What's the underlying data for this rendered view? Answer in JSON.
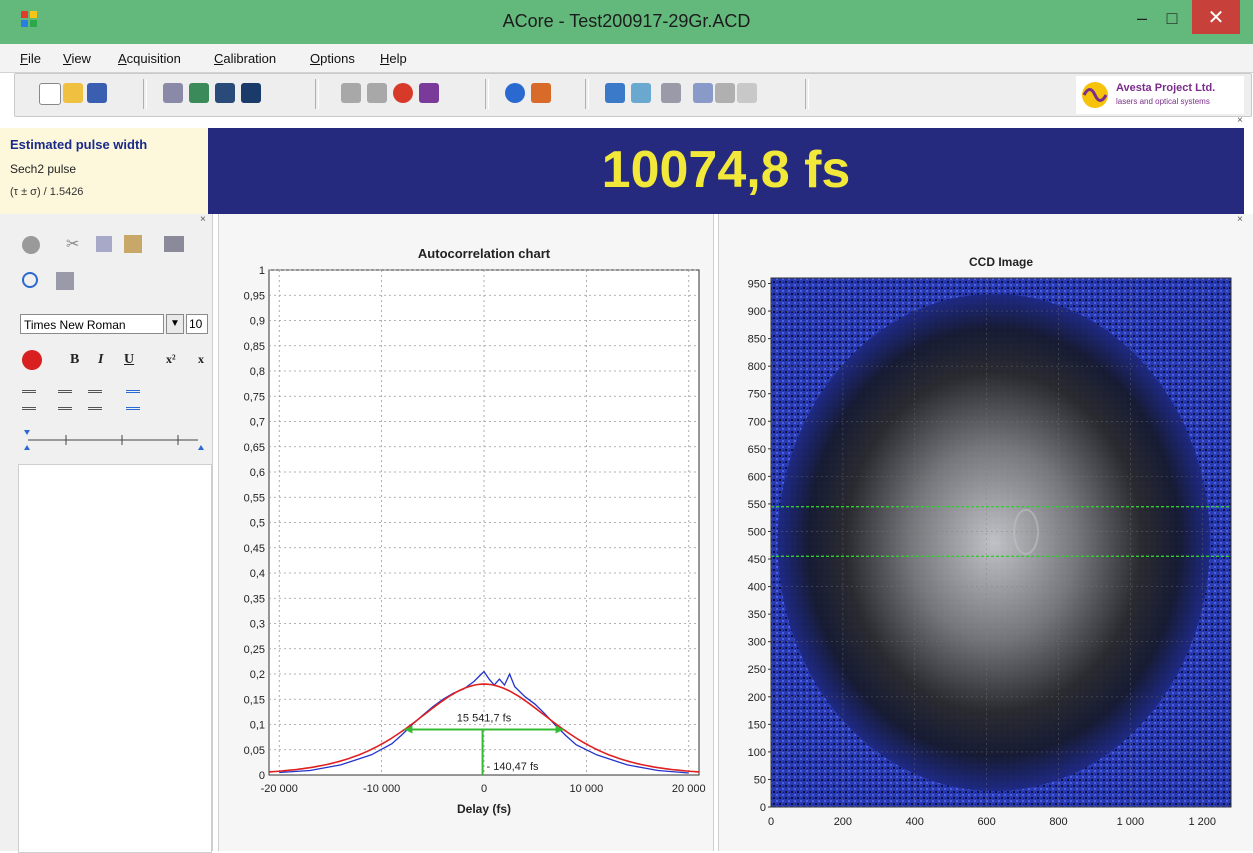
{
  "window": {
    "title": "ACore - Test200917-29Gr.ACD",
    "min_label": "–",
    "max_label": "□",
    "close_label": "✕"
  },
  "menu": [
    "File",
    "View",
    "Acquisition",
    "Calibration",
    "Options",
    "Help"
  ],
  "toolbar_icons": [
    "new-file-icon",
    "open-folder-icon",
    "save-icon",
    "edit-icon",
    "image-icon",
    "export-icon",
    "import-icon",
    "record-icon",
    "record2-icon",
    "stop-icon",
    "settings-icon",
    "help-icon",
    "puzzle-icon",
    "run-icon",
    "document-icon",
    "tools-icon",
    "arrows-icon",
    "copy-icon",
    "paste-icon"
  ],
  "logo": {
    "line1": "Avesta Project Ltd.",
    "line2": "lasers and optical systems"
  },
  "pulse": {
    "title": "Estimated pulse width",
    "type": "Sech2 pulse",
    "formula": "(τ ± σ) / 1.5426",
    "value": "10074,8 fs"
  },
  "editor": {
    "font_name": "Times New Roman",
    "font_size": "10",
    "bold_label": "B",
    "italic_label": "I",
    "underline_label": "U",
    "superscript_label": "x²",
    "subscript_label": "x"
  },
  "panel_close": "×",
  "colors": {
    "title_bar": "#63b97c",
    "result_bg": "#252a7e",
    "result_text": "#f2e83a",
    "data_blue": "#2233cc",
    "fit_red": "#e02020",
    "marker_green": "#33bb33"
  },
  "chart_data": [
    {
      "type": "line",
      "title": "Autocorrelation chart",
      "xlabel": "Delay (fs)",
      "ylabel": "",
      "xlim": [
        -21000,
        21000
      ],
      "ylim": [
        0,
        1
      ],
      "x_ticks": [
        -20000,
        -10000,
        0,
        10000,
        20000
      ],
      "x_tick_labels": [
        "-20 000",
        "-10 000",
        "0",
        "10 000",
        "20 000"
      ],
      "y_ticks": [
        0,
        0.05,
        0.1,
        0.15,
        0.2,
        0.25,
        0.3,
        0.35,
        0.4,
        0.45,
        0.5,
        0.55,
        0.6,
        0.65,
        0.7,
        0.75,
        0.8,
        0.85,
        0.9,
        0.95,
        1
      ],
      "y_tick_labels": [
        "0",
        "0,05",
        "0,1",
        "0,15",
        "0,2",
        "0,25",
        "0,3",
        "0,35",
        "0,4",
        "0,45",
        "0,5",
        "0,55",
        "0,6",
        "0,65",
        "0,7",
        "0,75",
        "0,8",
        "0,85",
        "0,9",
        "0,95",
        "1"
      ],
      "grid": true,
      "fit": {
        "peak": 0.18,
        "center": 0,
        "fwhm": 15541.7
      },
      "measured_points": [
        [
          -20000,
          0.005
        ],
        [
          -17000,
          0.009
        ],
        [
          -14000,
          0.02
        ],
        [
          -11000,
          0.04
        ],
        [
          -9000,
          0.062
        ],
        [
          -8000,
          0.08
        ],
        [
          -7000,
          0.1
        ],
        [
          -6000,
          0.118
        ],
        [
          -5000,
          0.135
        ],
        [
          -4000,
          0.15
        ],
        [
          -3000,
          0.162
        ],
        [
          -2000,
          0.17
        ],
        [
          -1000,
          0.185
        ],
        [
          -500,
          0.195
        ],
        [
          0,
          0.205
        ],
        [
          500,
          0.19
        ],
        [
          1000,
          0.178
        ],
        [
          1500,
          0.19
        ],
        [
          2000,
          0.178
        ],
        [
          2500,
          0.2
        ],
        [
          3000,
          0.175
        ],
        [
          4000,
          0.155
        ],
        [
          5000,
          0.14
        ],
        [
          6000,
          0.12
        ],
        [
          7000,
          0.098
        ],
        [
          8000,
          0.078
        ],
        [
          9000,
          0.06
        ],
        [
          11000,
          0.04
        ],
        [
          14000,
          0.02
        ],
        [
          17000,
          0.009
        ],
        [
          20000,
          0.004
        ]
      ],
      "annotations": {
        "fwhm_label": "15 541,7 fs",
        "offset_label": "- 140,47 fs",
        "fwhm_level": 0.09,
        "offset_x": -140.47
      }
    },
    {
      "type": "heatmap",
      "title": "CCD Image",
      "xlabel": "",
      "ylabel": "",
      "xlim": [
        0,
        1280
      ],
      "ylim": [
        0,
        960
      ],
      "x_ticks": [
        0,
        200,
        400,
        600,
        800,
        1000,
        1200
      ],
      "x_tick_labels": [
        "0",
        "200",
        "400",
        "600",
        "800",
        "1 000",
        "1 200"
      ],
      "y_ticks": [
        0,
        50,
        100,
        150,
        200,
        250,
        300,
        350,
        400,
        450,
        500,
        550,
        600,
        650,
        700,
        750,
        800,
        850,
        900,
        950
      ],
      "y_tick_labels": [
        "0",
        "50",
        "100",
        "150",
        "200",
        "250",
        "300",
        "350",
        "400",
        "450",
        "500",
        "550",
        "600",
        "650",
        "700",
        "750",
        "800",
        "850",
        "900",
        "950"
      ],
      "roi_y": [
        455,
        545
      ],
      "grid": true,
      "spot_center": [
        620,
        480
      ]
    }
  ]
}
